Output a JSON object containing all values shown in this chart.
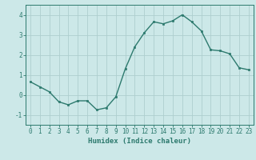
{
  "x": [
    0,
    1,
    2,
    3,
    4,
    5,
    6,
    7,
    8,
    9,
    10,
    11,
    12,
    13,
    14,
    15,
    16,
    17,
    18,
    19,
    20,
    21,
    22,
    23
  ],
  "y": [
    0.65,
    0.4,
    0.15,
    -0.35,
    -0.5,
    -0.3,
    -0.3,
    -0.75,
    -0.65,
    -0.1,
    1.3,
    2.4,
    3.1,
    3.65,
    3.55,
    3.7,
    4.0,
    3.65,
    3.2,
    2.25,
    2.2,
    2.05,
    1.35,
    1.25
  ],
  "line_color": "#2d7a6e",
  "marker": "s",
  "marker_size": 2.0,
  "bg_color": "#cce8e8",
  "grid_color": "#aecece",
  "axis_color": "#2d7a6e",
  "xlabel": "Humidex (Indice chaleur)",
  "xlabel_fontsize": 6.5,
  "tick_fontsize": 5.5,
  "ylim": [
    -1.5,
    4.5
  ],
  "xlim": [
    -0.5,
    23.5
  ],
  "yticks": [
    -1,
    0,
    1,
    2,
    3,
    4
  ],
  "xticks": [
    0,
    1,
    2,
    3,
    4,
    5,
    6,
    7,
    8,
    9,
    10,
    11,
    12,
    13,
    14,
    15,
    16,
    17,
    18,
    19,
    20,
    21,
    22,
    23
  ],
  "linewidth": 1.0
}
